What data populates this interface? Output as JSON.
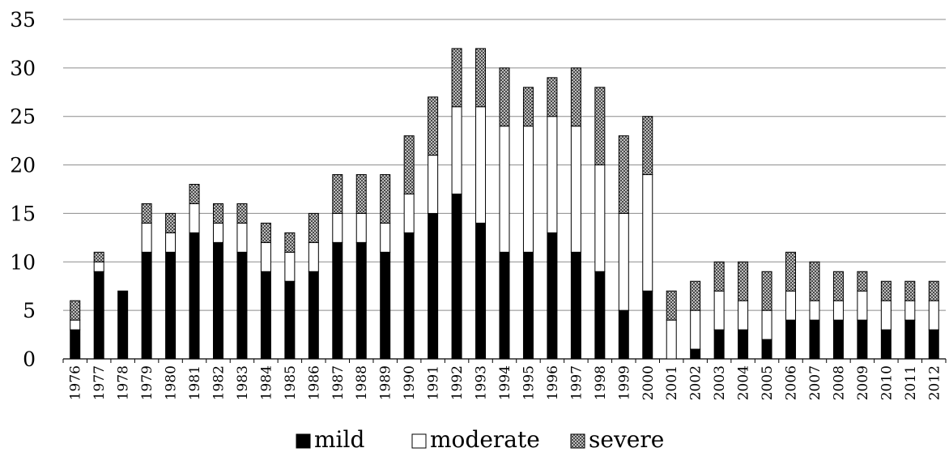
{
  "chart_data": {
    "type": "bar",
    "stacked": true,
    "categories": [
      "1976",
      "1977",
      "1978",
      "1979",
      "1980",
      "1981",
      "1982",
      "1983",
      "1984",
      "1985",
      "1986",
      "1987",
      "1988",
      "1989",
      "1990",
      "1991",
      "1992",
      "1993",
      "1994",
      "1995",
      "1996",
      "1997",
      "1998",
      "1999",
      "2000",
      "2001",
      "2002",
      "2003",
      "2004",
      "2005",
      "2006",
      "2007",
      "2008",
      "2009",
      "2010",
      "2011",
      "2012"
    ],
    "series": [
      {
        "name": "mild",
        "color": "#000000",
        "pattern": "solid",
        "values": [
          3,
          9,
          7,
          11,
          11,
          13,
          12,
          11,
          9,
          8,
          9,
          12,
          12,
          11,
          13,
          15,
          17,
          14,
          11,
          11,
          13,
          11,
          9,
          5,
          7,
          0,
          1,
          3,
          3,
          2,
          4,
          4,
          4,
          4,
          3,
          4,
          3
        ]
      },
      {
        "name": "moderate",
        "color": "#ffffff",
        "pattern": "outline",
        "values": [
          1,
          1,
          0,
          3,
          2,
          3,
          2,
          3,
          3,
          3,
          3,
          3,
          3,
          3,
          4,
          6,
          9,
          12,
          13,
          13,
          12,
          13,
          11,
          10,
          12,
          4,
          4,
          4,
          3,
          3,
          3,
          2,
          2,
          3,
          3,
          2,
          3
        ]
      },
      {
        "name": "severe",
        "color": "#999999",
        "pattern": "checker",
        "values": [
          2,
          1,
          0,
          2,
          2,
          2,
          2,
          2,
          2,
          2,
          3,
          4,
          4,
          5,
          6,
          6,
          6,
          6,
          6,
          4,
          4,
          6,
          8,
          8,
          6,
          3,
          3,
          3,
          4,
          4,
          4,
          4,
          3,
          2,
          2,
          2,
          2
        ]
      }
    ],
    "title": "",
    "xlabel": "",
    "ylabel": "",
    "ylim": [
      0,
      35
    ],
    "yticks": [
      0,
      5,
      10,
      15,
      20,
      25,
      30,
      35
    ],
    "grid": true,
    "legend_position": "bottom"
  }
}
